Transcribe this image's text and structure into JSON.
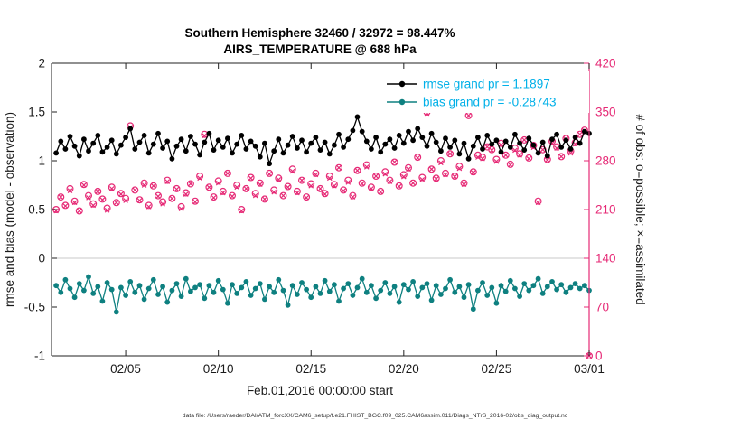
{
  "chart_data": {
    "type": "line",
    "title": "Southern Hemisphere 32460 / 32972 = 98.447%",
    "subtitle": "AIRS_TEMPERATURE @ 688 hPa",
    "xlabel": "Feb.01,2016 00:00:00 start",
    "ylabel_left": "rmse and bias (model - observation)",
    "ylabel_right": "# of obs: o=possible; ×=assimilated",
    "grand_averages": {
      "rmse": 1.1897,
      "bias": -0.28743
    },
    "legend": {
      "rmse_label": "rmse grand pr = 1.1897",
      "bias_label": "bias grand pr = -0.28743"
    },
    "colors": {
      "rmse": "#000000",
      "bias": "#0e8080",
      "obs": "#e62a76",
      "legend_text": "#00b0e8",
      "zero_line": "#c8c8c8"
    },
    "x_axis": {
      "start_day": 0.25,
      "step_day": 0.25,
      "range_days": [
        0,
        29
      ],
      "tick_days": [
        4,
        9,
        14,
        19,
        24,
        29
      ],
      "tick_labels": [
        "02/05",
        "02/10",
        "02/15",
        "02/20",
        "02/25",
        "03/01"
      ]
    },
    "y_left": {
      "range": [
        -1,
        2
      ],
      "ticks": [
        2,
        1.5,
        1,
        0.5,
        0,
        -0.5,
        -1
      ]
    },
    "y_right": {
      "range": [
        0,
        420
      ],
      "ticks": [
        420,
        350,
        280,
        210,
        140,
        70,
        0
      ]
    },
    "series": [
      {
        "name": "rmse",
        "axis": "left",
        "marker": "dot",
        "values": [
          1.08,
          1.2,
          1.12,
          1.25,
          1.15,
          1.05,
          1.22,
          1.1,
          1.18,
          1.26,
          1.09,
          1.14,
          1.21,
          1.07,
          1.16,
          1.24,
          1.33,
          1.12,
          1.19,
          1.26,
          1.08,
          1.17,
          1.28,
          1.13,
          1.2,
          1.02,
          1.15,
          1.22,
          1.1,
          1.25,
          1.17,
          1.06,
          1.19,
          1.28,
          1.11,
          1.21,
          1.14,
          1.23,
          1.08,
          1.17,
          1.26,
          1.12,
          1.2,
          1.15,
          1.04,
          1.18,
          0.97,
          1.1,
          1.22,
          1.08,
          1.16,
          1.25,
          1.13,
          1.21,
          1.09,
          1.18,
          1.24,
          1.11,
          1.19,
          1.07,
          1.16,
          1.27,
          1.14,
          1.22,
          1.31,
          1.45,
          1.3,
          1.2,
          1.12,
          1.24,
          1.09,
          1.17,
          1.22,
          1.13,
          1.26,
          1.18,
          1.3,
          1.21,
          1.33,
          1.24,
          1.15,
          1.28,
          1.19,
          1.1,
          1.23,
          1.14,
          1.21,
          1.07,
          1.18,
          1.02,
          1.15,
          1.24,
          1.12,
          1.26,
          1.17,
          1.21,
          1.09,
          1.2,
          1.14,
          1.27,
          1.18,
          1.11,
          1.23,
          1.16,
          1.08,
          1.19,
          1.05,
          1.22,
          1.27,
          1.14,
          1.21,
          1.12,
          1.24,
          1.18,
          1.3,
          1.28
        ]
      },
      {
        "name": "bias",
        "axis": "left",
        "marker": "dot",
        "values": [
          -0.28,
          -0.35,
          -0.22,
          -0.31,
          -0.4,
          -0.26,
          -0.33,
          -0.19,
          -0.36,
          -0.29,
          -0.44,
          -0.25,
          -0.32,
          -0.55,
          -0.3,
          -0.38,
          -0.24,
          -0.35,
          -0.28,
          -0.42,
          -0.31,
          -0.22,
          -0.37,
          -0.29,
          -0.45,
          -0.33,
          -0.26,
          -0.39,
          -0.21,
          -0.34,
          -0.3,
          -0.27,
          -0.41,
          -0.28,
          -0.35,
          -0.23,
          -0.32,
          -0.46,
          -0.27,
          -0.36,
          -0.3,
          -0.24,
          -0.38,
          -0.31,
          -0.26,
          -0.42,
          -0.29,
          -0.35,
          -0.22,
          -0.33,
          -0.48,
          -0.28,
          -0.37,
          -0.25,
          -0.32,
          -0.4,
          -0.29,
          -0.36,
          -0.23,
          -0.34,
          -0.27,
          -0.44,
          -0.31,
          -0.26,
          -0.38,
          -0.3,
          -0.21,
          -0.35,
          -0.28,
          -0.41,
          -0.33,
          -0.25,
          -0.36,
          -0.29,
          -0.45,
          -0.27,
          -0.32,
          -0.24,
          -0.39,
          -0.3,
          -0.26,
          -0.43,
          -0.28,
          -0.37,
          -0.31,
          -0.22,
          -0.35,
          -0.29,
          -0.4,
          -0.27,
          -0.52,
          -0.33,
          -0.25,
          -0.38,
          -0.3,
          -0.46,
          -0.28,
          -0.34,
          -0.23,
          -0.31,
          -0.39,
          -0.26,
          -0.33,
          -0.28,
          -0.21,
          -0.36,
          -0.29,
          -0.24,
          -0.32,
          -0.27,
          -0.35,
          -0.3,
          -0.26,
          -0.31,
          -0.28,
          -0.33
        ]
      },
      {
        "name": "possible",
        "axis": "right",
        "marker": "o",
        "values": [
          210,
          228,
          216,
          240,
          222,
          208,
          246,
          230,
          218,
          236,
          225,
          212,
          242,
          220,
          233,
          226,
          330,
          238,
          224,
          248,
          216,
          244,
          230,
          221,
          252,
          226,
          240,
          214,
          234,
          247,
          222,
          258,
          318,
          242,
          228,
          251,
          236,
          262,
          230,
          245,
          210,
          240,
          256,
          233,
          248,
          225,
          262,
          238,
          255,
          230,
          243,
          268,
          236,
          252,
          228,
          247,
          262,
          240,
          233,
          258,
          246,
          270,
          238,
          252,
          230,
          266,
          248,
          274,
          242,
          258,
          236,
          264,
          252,
          278,
          244,
          260,
          270,
          248,
          285,
          256,
          350,
          268,
          255,
          280,
          262,
          290,
          258,
          272,
          248,
          345,
          264,
          288,
          285,
          300,
          296,
          282,
          305,
          288,
          275,
          298,
          290,
          310,
          284,
          302,
          222,
          296,
          282,
          308,
          300,
          286,
          312,
          294,
          306,
          318,
          324,
          0
        ]
      },
      {
        "name": "assimilated",
        "axis": "right",
        "marker": "x",
        "values": [
          208,
          228,
          215,
          237,
          220,
          208,
          245,
          227,
          216,
          236,
          224,
          209,
          240,
          220,
          232,
          223,
          328,
          238,
          223,
          245,
          214,
          244,
          229,
          218,
          250,
          226,
          239,
          211,
          232,
          247,
          221,
          255,
          316,
          242,
          227,
          248,
          234,
          262,
          229,
          242,
          208,
          240,
          255,
          230,
          246,
          225,
          261,
          235,
          253,
          230,
          242,
          265,
          234,
          252,
          227,
          244,
          260,
          240,
          232,
          255,
          244,
          270,
          237,
          249,
          228,
          266,
          247,
          271,
          240,
          258,
          235,
          261,
          250,
          278,
          243,
          257,
          268,
          248,
          284,
          253,
          348,
          268,
          254,
          277,
          260,
          290,
          257,
          269,
          246,
          345,
          263,
          285,
          283,
          300,
          295,
          279,
          303,
          288,
          274,
          295,
          288,
          310,
          283,
          299,
          220,
          296,
          281,
          305,
          298,
          286,
          311,
          291,
          304,
          318,
          323,
          0
        ]
      }
    ]
  },
  "footer": {
    "datafile": "data file: /Users/raeder/DAI/ATM_forcXX/CAM6_setup/f.e21.FHIST_BGC.f09_025.CAM6assim.011/Diags_NTrS_2016-02/obs_diag_output.nc"
  }
}
